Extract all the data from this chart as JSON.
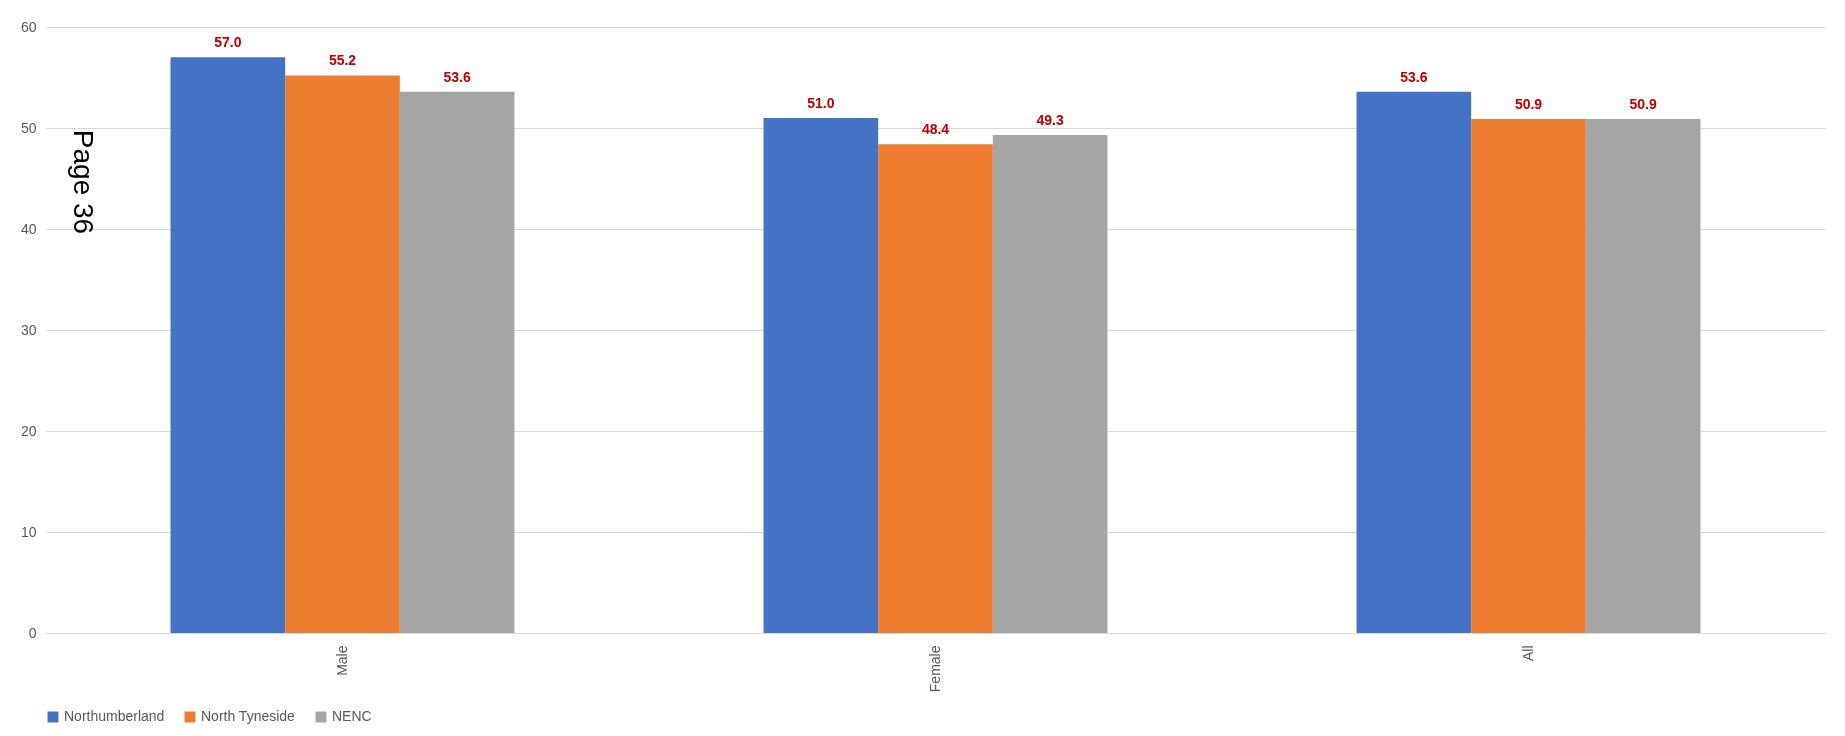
{
  "chart_data": {
    "type": "bar",
    "categories": [
      "Male",
      "Female",
      "All"
    ],
    "series": [
      {
        "name": "Northumberland",
        "color": "#4472c4",
        "values": [
          57.0,
          51.0,
          53.6
        ],
        "value_labels": [
          "57.0",
          "51.0",
          "53.6"
        ]
      },
      {
        "name": "North Tyneside",
        "color": "#ed7d31",
        "values": [
          55.2,
          48.4,
          50.9
        ],
        "value_labels": [
          "55.2",
          "48.4",
          "50.9"
        ]
      },
      {
        "name": "NENC",
        "color": "#a5a5a5",
        "values": [
          53.6,
          49.3,
          50.9
        ],
        "value_labels": [
          "53.6",
          "49.3",
          "50.9"
        ]
      }
    ],
    "ylim": [
      0,
      60
    ],
    "yticks": [
      0,
      10,
      20,
      30,
      40,
      50,
      60
    ],
    "grid": "y",
    "legend": "bottom",
    "annotations": [
      "Page 36"
    ]
  }
}
